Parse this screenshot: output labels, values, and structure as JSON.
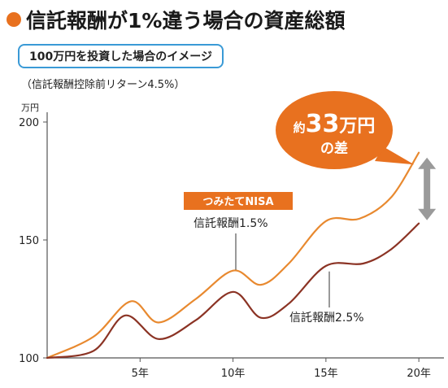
{
  "title": "信託報酬が1%違う場合の資産総額",
  "subtitle": "100万円を投資した場合のイメージ",
  "note": "（信託報酬控除前リターン4.5%）",
  "colors": {
    "accent": "#e8711f",
    "series_high": "#e8892f",
    "series_low": "#8b3324",
    "subtitle_border": "#3a9ad6",
    "arrow": "#9a9a9a"
  },
  "chart_data": {
    "type": "line",
    "ylabel": "万円",
    "ylim": [
      100,
      200
    ],
    "xlim": [
      0,
      21
    ],
    "x_ticks": [
      5,
      10,
      15,
      20
    ],
    "x_tick_labels": [
      "5年",
      "10年",
      "15年",
      "20年"
    ],
    "y_ticks": [
      100,
      150,
      200
    ],
    "y_tick_labels": [
      "100",
      "150",
      "200"
    ],
    "series": [
      {
        "name": "信託報酬1.5%",
        "badge": "つみたてNISA",
        "color": "#e8892f",
        "x": [
          0,
          2.5,
          4.5,
          6,
          8,
          10,
          11.5,
          13,
          15,
          16.8,
          18.5,
          20
        ],
        "y": [
          100,
          109,
          124,
          115,
          125,
          137,
          131,
          140,
          158,
          159,
          168,
          187
        ]
      },
      {
        "name": "信託報酬2.5%",
        "color": "#8b3324",
        "x": [
          0,
          2.5,
          4.2,
          6,
          8,
          10,
          11.5,
          13,
          15,
          17,
          18.5,
          20
        ],
        "y": [
          100,
          103,
          118,
          108,
          116,
          128,
          117,
          123,
          139,
          140,
          146,
          157
        ]
      }
    ],
    "annotation": {
      "text_prefix": "約",
      "value": "33",
      "unit": "万円",
      "suffix": "の差"
    }
  }
}
